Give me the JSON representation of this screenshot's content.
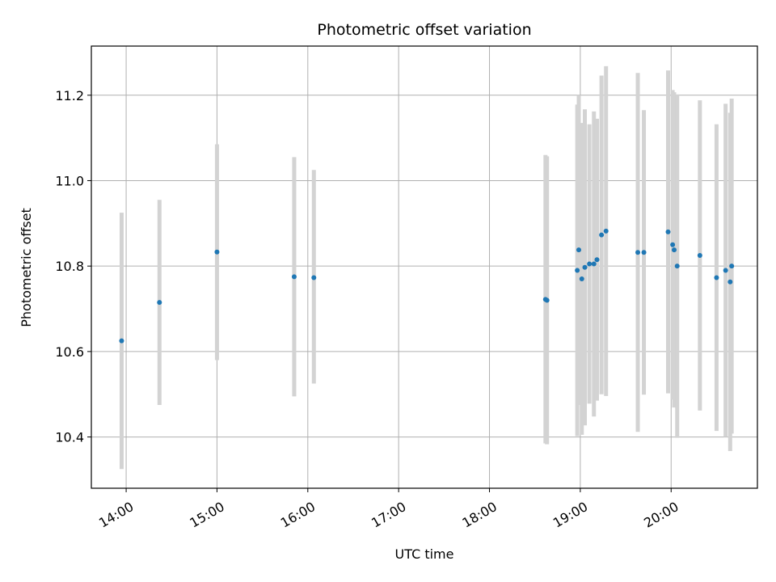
{
  "chart_data": {
    "type": "scatter",
    "title": "Photometric offset variation",
    "xlabel": "UTC time",
    "ylabel": "Photometric offset",
    "xlim": [
      "13:37",
      "20:57"
    ],
    "ylim": [
      10.28,
      11.315
    ],
    "x_ticks": [
      "14:00",
      "15:00",
      "16:00",
      "17:00",
      "18:00",
      "19:00",
      "20:00"
    ],
    "y_ticks": [
      10.4,
      10.6,
      10.8,
      11.0,
      11.2
    ],
    "y_tick_labels": [
      "10.4",
      "10.6",
      "10.8",
      "11.0",
      "11.2"
    ],
    "grid": true,
    "point_color": "#1f77b4",
    "errorbar_color": "#d3d3d3",
    "points": [
      {
        "x": "13:57",
        "y": 10.625,
        "lo": 10.325,
        "hi": 10.925
      },
      {
        "x": "14:22",
        "y": 10.715,
        "lo": 10.475,
        "hi": 10.955
      },
      {
        "x": "15:00",
        "y": 10.833,
        "lo": 10.58,
        "hi": 11.085
      },
      {
        "x": "15:51",
        "y": 10.775,
        "lo": 10.495,
        "hi": 11.055
      },
      {
        "x": "16:04",
        "y": 10.773,
        "lo": 10.525,
        "hi": 11.025
      },
      {
        "x": "18:37",
        "y": 10.722,
        "lo": 10.385,
        "hi": 11.06
      },
      {
        "x": "18:38",
        "y": 10.72,
        "lo": 10.383,
        "hi": 11.057
      },
      {
        "x": "18:58",
        "y": 10.79,
        "lo": 10.402,
        "hi": 11.178
      },
      {
        "x": "18:59",
        "y": 10.838,
        "lo": 10.475,
        "hi": 11.2
      },
      {
        "x": "19:01",
        "y": 10.77,
        "lo": 10.405,
        "hi": 11.135
      },
      {
        "x": "19:03",
        "y": 10.797,
        "lo": 10.427,
        "hi": 11.167
      },
      {
        "x": "19:06",
        "y": 10.805,
        "lo": 10.478,
        "hi": 11.132
      },
      {
        "x": "19:09",
        "y": 10.805,
        "lo": 10.448,
        "hi": 11.162
      },
      {
        "x": "19:11",
        "y": 10.815,
        "lo": 10.485,
        "hi": 11.145
      },
      {
        "x": "19:14",
        "y": 10.873,
        "lo": 10.5,
        "hi": 11.246
      },
      {
        "x": "19:17",
        "y": 10.882,
        "lo": 10.496,
        "hi": 11.268
      },
      {
        "x": "19:38",
        "y": 10.832,
        "lo": 10.412,
        "hi": 11.252
      },
      {
        "x": "19:42",
        "y": 10.832,
        "lo": 10.499,
        "hi": 11.165
      },
      {
        "x": "19:58",
        "y": 10.88,
        "lo": 10.502,
        "hi": 11.258
      },
      {
        "x": "20:01",
        "y": 10.85,
        "lo": 10.488,
        "hi": 11.212
      },
      {
        "x": "20:02",
        "y": 10.838,
        "lo": 10.469,
        "hi": 11.207
      },
      {
        "x": "20:04",
        "y": 10.8,
        "lo": 10.398,
        "hi": 11.202
      },
      {
        "x": "20:19",
        "y": 10.825,
        "lo": 10.462,
        "hi": 11.188
      },
      {
        "x": "20:30",
        "y": 10.773,
        "lo": 10.414,
        "hi": 11.132
      },
      {
        "x": "20:36",
        "y": 10.79,
        "lo": 10.4,
        "hi": 11.18
      },
      {
        "x": "20:39",
        "y": 10.763,
        "lo": 10.367,
        "hi": 11.159
      },
      {
        "x": "20:40",
        "y": 10.8,
        "lo": 10.408,
        "hi": 11.192
      }
    ]
  }
}
